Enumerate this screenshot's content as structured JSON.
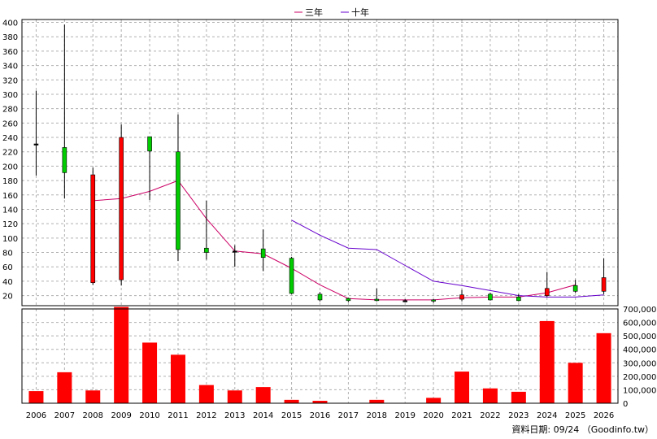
{
  "chart_data": {
    "type": "candlestick",
    "legend": {
      "placement": "top-center",
      "entries": [
        {
          "name": "三年",
          "color": "#cc0066"
        },
        {
          "name": "十年",
          "color": "#6600cc"
        }
      ]
    },
    "categories": [
      "2006",
      "2007",
      "2008",
      "2009",
      "2010",
      "2011",
      "2012",
      "2013",
      "2014",
      "2015",
      "2016",
      "2017",
      "2018",
      "2019",
      "2020",
      "2021",
      "2022",
      "2023",
      "2024",
      "2025",
      "2026"
    ],
    "price_axis": {
      "ticks": [
        "400",
        "380",
        "360",
        "340",
        "320",
        "300",
        "280",
        "260",
        "240",
        "220",
        "200",
        "180",
        "160",
        "140",
        "120",
        "100",
        "80",
        "60",
        "40",
        "20"
      ],
      "ylim": [
        6,
        404
      ],
      "grid": true
    },
    "candles": [
      {
        "open": 231,
        "high": 305,
        "low": 187,
        "close": 231
      },
      {
        "open": 191,
        "high": 397,
        "low": 155,
        "close": 226
      },
      {
        "open": 188,
        "high": 198,
        "low": 35,
        "close": 38
      },
      {
        "open": 240,
        "high": 258,
        "low": 34,
        "close": 42
      },
      {
        "open": 221,
        "high": 241,
        "low": 153,
        "close": 241
      },
      {
        "open": 84,
        "high": 272,
        "low": 68,
        "close": 220
      },
      {
        "open": 80,
        "high": 152,
        "low": 70,
        "close": 86
      },
      {
        "open": 82,
        "high": 90,
        "low": 60,
        "close": 82
      },
      {
        "open": 73,
        "high": 112,
        "low": 54,
        "close": 85
      },
      {
        "open": 23,
        "high": 74,
        "low": 22,
        "close": 72
      },
      {
        "open": 14,
        "high": 25,
        "low": 12,
        "close": 22
      },
      {
        "open": 13,
        "high": 17,
        "low": 11,
        "close": 16
      },
      {
        "open": 13,
        "high": 30,
        "low": 12,
        "close": 15
      },
      {
        "open": 13,
        "high": 15,
        "low": 11,
        "close": 13
      },
      {
        "open": 13,
        "high": 15,
        "low": 10,
        "close": 14
      },
      {
        "open": 21,
        "high": 28,
        "low": 12,
        "close": 15
      },
      {
        "open": 14,
        "high": 24,
        "low": 13,
        "close": 22
      },
      {
        "open": 13,
        "high": 22,
        "low": 12,
        "close": 18
      },
      {
        "open": 30,
        "high": 53,
        "low": 18,
        "close": 20
      },
      {
        "open": 26,
        "high": 42,
        "low": 24,
        "close": 34
      },
      {
        "open": 45,
        "high": 72,
        "low": 22,
        "close": 26
      }
    ],
    "moving_averages": [
      {
        "name": "三年",
        "start_index": 2,
        "values": [
          152,
          155,
          165,
          180,
          127,
          82,
          78,
          58,
          35,
          16,
          14,
          14,
          14,
          17,
          18,
          18,
          24,
          35
        ]
      },
      {
        "name": "十年",
        "start_index": 9,
        "values": [
          125,
          104,
          86,
          84,
          62,
          40,
          34,
          27,
          20,
          18,
          18,
          21
        ]
      }
    ],
    "volume_axis": {
      "ticks": [
        "700,000",
        "600,000",
        "500,000",
        "400,000",
        "300,000",
        "200,000",
        "100,000",
        "0"
      ],
      "ylim": [
        0,
        700000
      ]
    },
    "volumes": [
      90000,
      230000,
      95000,
      715000,
      450000,
      360000,
      135000,
      95000,
      120000,
      25000,
      18000,
      3000,
      25000,
      3000,
      40000,
      235000,
      110000,
      85000,
      610000,
      300000,
      520000
    ],
    "colors": {
      "up": "#ff0000",
      "down": "#00cc00",
      "candle_border": "#000000",
      "volume": "#ff0000",
      "grid": "#b0b0b0"
    },
    "footnote": "資料日期: 09/24 （Goodinfo.tw）"
  }
}
